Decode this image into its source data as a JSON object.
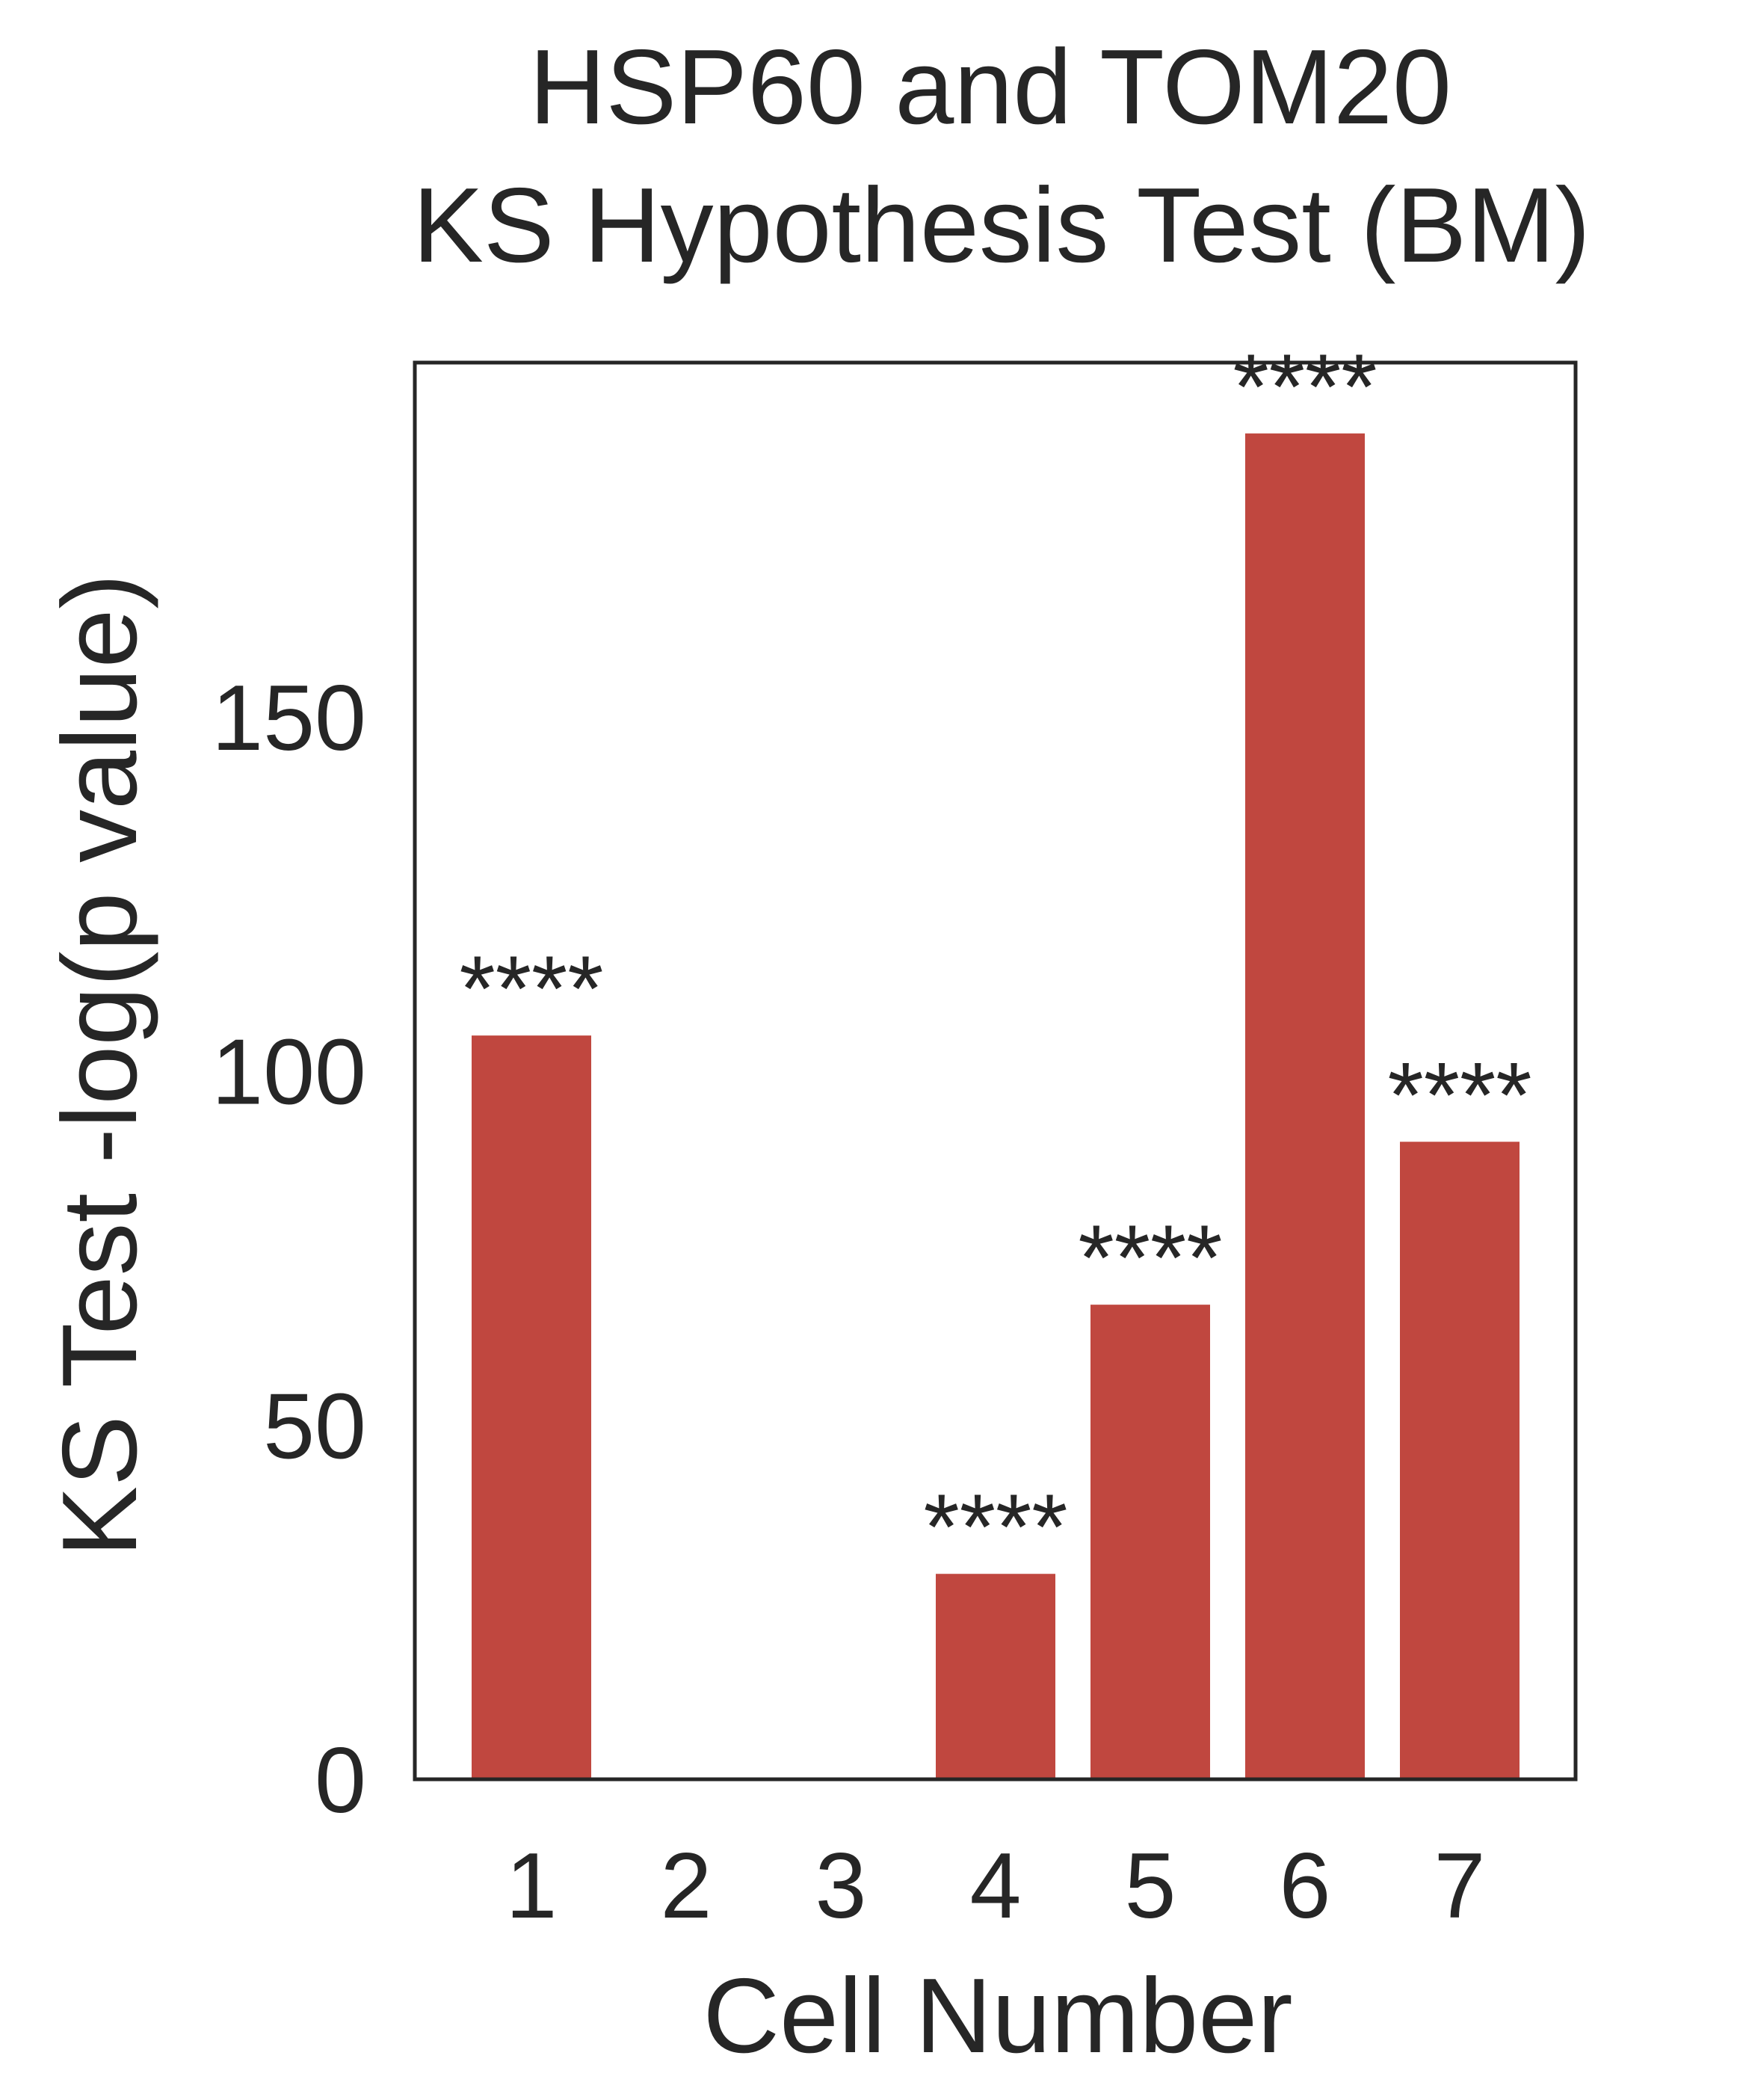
{
  "chart_data": {
    "type": "bar",
    "title": [
      "HSP60 and TOM20",
      "KS Hypothesis Test (BM)"
    ],
    "xlabel": "Cell Number",
    "ylabel": "KS Test -log(p value)",
    "categories": [
      "1",
      "2",
      "3",
      "4",
      "5",
      "6",
      "7"
    ],
    "values": [
      105,
      0,
      0,
      29,
      67,
      190,
      90
    ],
    "annotations": [
      "****",
      "",
      "",
      "****",
      "****",
      "****",
      "****"
    ],
    "ylim": [
      0,
      200
    ],
    "yticks": [
      0,
      50,
      100,
      150
    ],
    "ytick_labels": [
      "0",
      "50",
      "100",
      "150"
    ],
    "grid": false,
    "legend": "none",
    "colors": {
      "bar": "#c0473f",
      "text": "#262626",
      "frame": "#262626",
      "background": "#ffffff"
    }
  }
}
